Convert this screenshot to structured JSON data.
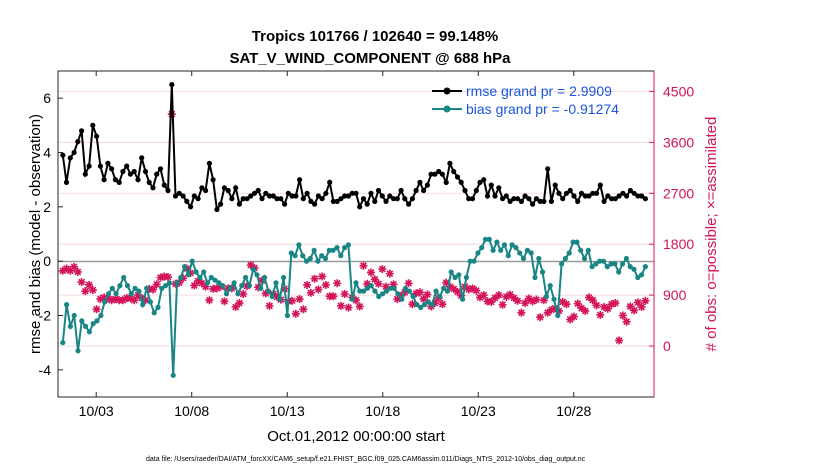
{
  "chart_data": {
    "type": "line",
    "title": "Tropics 101766 / 102640 = 99.148%",
    "subtitle": "SAT_V_WIND_COMPONENT @ 688 hPa",
    "xlabel": "Oct.01,2012 00:00:00 start",
    "ylabel_left": "rmse and bias (model - observation)",
    "ylabel_right": "# of obs: o=possible; ×=assimilated",
    "x_ticks": [
      "10/03",
      "10/08",
      "10/13",
      "10/18",
      "10/23",
      "10/28"
    ],
    "x_tick_days": [
      3,
      8,
      13,
      18,
      23,
      28
    ],
    "xlim_days": [
      1,
      32.2
    ],
    "ylim_left": [
      -5,
      7
    ],
    "y_ticks_left": [
      "-4",
      "-2",
      "0",
      "2",
      "4",
      "6"
    ],
    "y_tick_values_left": [
      -4,
      -2,
      0,
      2,
      4,
      6
    ],
    "ylim_right": [
      -900,
      4860
    ],
    "y_ticks_right": [
      "0",
      "900",
      "1800",
      "2700",
      "3600",
      "4500"
    ],
    "y_tick_values_right": [
      0,
      900,
      1800,
      2700,
      3600,
      4500
    ],
    "footnote": "data file: /Users/raeder/DAI/ATM_forcXX/CAM6_setup/f.e21.FHIST_BGC.f09_025.CAM6assim.011/Diags_NTrS_2012-10/obs_diag_output.nc",
    "colors": {
      "rmse": "#000000",
      "bias": "#1a8585",
      "obs": "#d4145a",
      "legend_text": "#1a55e0",
      "right_axis": "#d4145a"
    },
    "series": [
      {
        "name": "rmse grand pr = 2.9909",
        "color": "#000000",
        "values": [
          3.9,
          2.9,
          3.8,
          4.0,
          4.4,
          4.8,
          3.2,
          3.5,
          5.0,
          4.6,
          3.5,
          3.0,
          3.6,
          3.4,
          3.0,
          2.9,
          3.3,
          3.5,
          3.2,
          3.3,
          3.0,
          3.8,
          3.3,
          2.9,
          2.7,
          3.2,
          3.4,
          2.8,
          2.6,
          6.5,
          2.4,
          2.5,
          2.4,
          2.2,
          2.0,
          2.4,
          2.3,
          2.7,
          2.6,
          3.6,
          3.0,
          1.9,
          2.1,
          2.7,
          2.6,
          2.3,
          2.7,
          2.1,
          2.3,
          2.3,
          2.4,
          2.5,
          2.6,
          2.3,
          2.5,
          2.4,
          2.4,
          2.3,
          2.3,
          2.1,
          2.5,
          2.4,
          2.4,
          3.0,
          2.3,
          2.5,
          2.2,
          2.1,
          2.4,
          2.3,
          2.5,
          2.9,
          2.2,
          2.2,
          2.3,
          2.4,
          2.4,
          2.5,
          2.5,
          2.0,
          2.3,
          2.1,
          2.5,
          2.2,
          2.6,
          2.4,
          2.2,
          2.4,
          2.3,
          2.3,
          2.6,
          2.3,
          2.1,
          2.3,
          2.6,
          2.9,
          2.6,
          2.8,
          3.2,
          3.2,
          3.3,
          3.2,
          2.9,
          3.6,
          3.3,
          3.1,
          2.9,
          2.6,
          2.3,
          2.3,
          2.6,
          2.9,
          3.0,
          2.4,
          2.8,
          2.4,
          2.7,
          2.3,
          2.4,
          2.2,
          2.3,
          2.3,
          2.2,
          2.4,
          2.3,
          2.1,
          2.3,
          2.2,
          2.2,
          3.4,
          2.2,
          2.8,
          2.5,
          2.3,
          2.5,
          2.6,
          2.4,
          2.2,
          2.5,
          2.4,
          2.4,
          2.5,
          2.5,
          2.8,
          2.2,
          2.4,
          2.3,
          2.3,
          2.4,
          2.5,
          2.4,
          2.6,
          2.5,
          2.4,
          2.4,
          2.3
        ]
      },
      {
        "name": "bias grand pr = -0.91274",
        "color": "#1a8585",
        "values": [
          -3.0,
          -1.6,
          -2.4,
          -2.0,
          -3.3,
          -2.2,
          -2.4,
          -2.6,
          -2.3,
          -2.2,
          -2.0,
          -1.5,
          -1.2,
          -1.0,
          -1.2,
          -0.9,
          -0.6,
          -0.9,
          -1.2,
          -1.0,
          -1.1,
          -1.6,
          -1.0,
          -1.5,
          -1.9,
          -1.7,
          -1.0,
          -0.9,
          -0.8,
          -4.2,
          -0.8,
          -0.6,
          -0.2,
          -0.5,
          0.0,
          -0.4,
          -0.6,
          -0.4,
          -0.8,
          -0.6,
          -0.7,
          -0.8,
          -0.9,
          -1.2,
          -1.0,
          -0.8,
          -1.2,
          -0.9,
          -0.6,
          -0.9,
          -0.3,
          -0.5,
          -1.0,
          -0.6,
          -1.1,
          -1.3,
          -0.8,
          -1.4,
          -0.6,
          -2.0,
          0.3,
          0.2,
          0.6,
          0.2,
          0.0,
          0.1,
          0.4,
          0.0,
          0.2,
          0.1,
          0.4,
          0.4,
          0.5,
          0.2,
          0.5,
          0.6,
          -1.4,
          -0.8,
          -1.1,
          -1.1,
          -1.0,
          -0.9,
          -1.1,
          -1.3,
          -1.2,
          -1.1,
          -1.0,
          -1.0,
          -1.2,
          -1.4,
          -1.0,
          -1.1,
          -1.3,
          -1.6,
          -1.7,
          -1.6,
          -1.5,
          -1.6,
          -1.1,
          -1.3,
          -1.0,
          -1.1,
          -0.4,
          -0.6,
          -0.5,
          -1.4,
          -0.6,
          0.0,
          0.0,
          0.3,
          0.5,
          0.8,
          0.8,
          0.4,
          0.7,
          0.4,
          0.6,
          0.2,
          0.6,
          0.5,
          0.3,
          0.1,
          0.4,
          0.3,
          -0.6,
          0.1,
          -0.4,
          -1.3,
          -0.9,
          -1.4,
          -2.0,
          -0.1,
          0.1,
          0.3,
          0.7,
          0.7,
          0.4,
          0.1,
          0.4,
          -0.2,
          -0.1,
          0.0,
          0.0,
          -0.2,
          -0.1,
          -0.1,
          -0.4,
          -0.1,
          0.1,
          -0.2,
          -0.3,
          -0.6,
          -0.5,
          -0.2
        ]
      },
      {
        "name": "# obs assimilated (right axis)",
        "color": "#d4145a",
        "values": [
          1330,
          1370,
          1330,
          1400,
          1310,
          1130,
          970,
          1080,
          990,
          650,
          830,
          860,
          840,
          810,
          830,
          810,
          810,
          850,
          840,
          810,
          900,
          850,
          810,
          1010,
          1000,
          1090,
          1210,
          1230,
          1220,
          4100,
          1100,
          1120,
          1200,
          1370,
          1290,
          1070,
          1150,
          1110,
          1050,
          810,
          1010,
          1020,
          1050,
          790,
          1020,
          1020,
          690,
          760,
          920,
          1060,
          1430,
          1380,
          1040,
          1160,
          930,
          710,
          920,
          870,
          820,
          1010,
          790,
          800,
          570,
          830,
          650,
          1080,
          940,
          1190,
          1000,
          1230,
          1080,
          880,
          880,
          1110,
          710,
          920,
          680,
          860,
          810,
          700,
          1420,
          1100,
          1300,
          1180,
          1100,
          1360,
          1050,
          1280,
          1090,
          830,
          890,
          950,
          1110,
          740,
          930,
          950,
          830,
          910,
          700,
          760,
          850,
          740,
          1120,
          1050,
          1010,
          960,
          890,
          1050,
          1000,
          1020,
          980,
          860,
          900,
          790,
          780,
          850,
          900,
          730,
          870,
          910,
          850,
          800,
          590,
          760,
          840,
          790,
          820,
          510,
          810,
          590,
          640,
          670,
          620,
          780,
          740,
          470,
          520,
          750,
          670,
          620,
          860,
          810,
          720,
          550,
          690,
          660,
          740,
          760,
          100,
          540,
          430,
          700,
          630,
          770,
          690,
          800
        ]
      }
    ],
    "legend": [
      {
        "label": "rmse grand pr = 2.9909",
        "marker": "filled circle",
        "color": "#000000"
      },
      {
        "label": "bias grand pr = -0.91274",
        "marker": "filled circle",
        "color": "#1a8585"
      }
    ],
    "legend_position": "top-right"
  }
}
